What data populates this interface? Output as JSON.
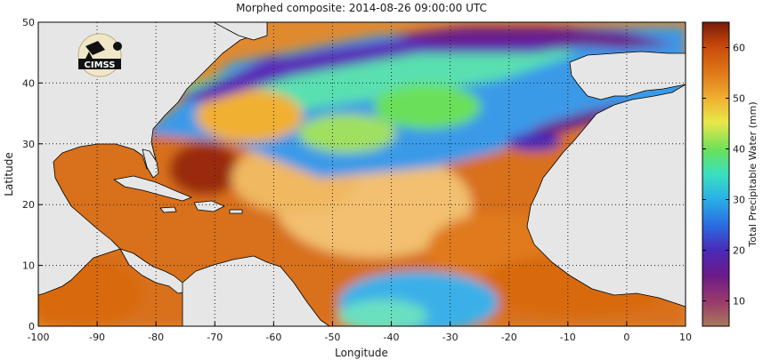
{
  "title": "Morphed composite: 2014-08-26 09:00:00 UTC",
  "xlabel": "Longitude",
  "ylabel": "Latitude",
  "colorbar_label": "Total Precipitable Water (mm)",
  "logo_text": "CIMSS",
  "colors": {
    "land": "#e6e6e6",
    "coast": "#000000",
    "gridline": "#222222"
  },
  "chart_data": {
    "type": "heatmap",
    "xlim": [
      -100,
      10
    ],
    "ylim": [
      0,
      50
    ],
    "xticks": [
      -100,
      -90,
      -80,
      -70,
      -60,
      -50,
      -40,
      -30,
      -20,
      -10,
      0,
      10
    ],
    "yticks": [
      0,
      10,
      20,
      30,
      40,
      50
    ],
    "grid": true,
    "colorbar": {
      "range": [
        5,
        65
      ],
      "ticks": [
        10,
        20,
        30,
        40,
        50,
        60
      ],
      "placement": "right"
    }
  }
}
